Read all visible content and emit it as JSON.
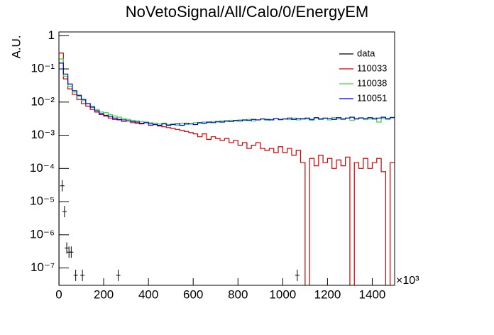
{
  "chart_data": {
    "type": "histogram",
    "title": "NoVetoSignal/All/Calo/0/EnergyEM",
    "y_label": "A.U.",
    "x_multiplier": "×10³",
    "log_y": true,
    "legend_position": "upper right",
    "xlim": [
      0,
      1500
    ],
    "xticks": [
      0,
      200,
      400,
      600,
      800,
      1000,
      1200,
      1400
    ],
    "ylim": [
      3e-08,
      1.3
    ],
    "yticks": [
      {
        "value": 1e-07,
        "label": "10⁻⁷"
      },
      {
        "value": 1e-06,
        "label": "10⁻⁶"
      },
      {
        "value": 1e-05,
        "label": "10⁻⁵"
      },
      {
        "value": 0.0001,
        "label": "10⁻⁴"
      },
      {
        "value": 0.001,
        "label": "10⁻³"
      },
      {
        "value": 0.01,
        "label": "10⁻²"
      },
      {
        "value": 0.1,
        "label": "10⁻¹"
      },
      1
    ],
    "bins": [
      0,
      20,
      40,
      60,
      80,
      100,
      120,
      140,
      160,
      180,
      200,
      220,
      240,
      260,
      280,
      300,
      320,
      340,
      360,
      380,
      400,
      420,
      440,
      460,
      480,
      500,
      520,
      540,
      560,
      580,
      600,
      620,
      640,
      660,
      680,
      700,
      720,
      740,
      760,
      780,
      800,
      820,
      840,
      860,
      880,
      900,
      920,
      940,
      960,
      980,
      1000,
      1020,
      1040,
      1060,
      1080,
      1100,
      1120,
      1140,
      1160,
      1180,
      1200,
      1220,
      1240,
      1260,
      1280,
      1300,
      1320,
      1340,
      1360,
      1380,
      1400,
      1420,
      1440,
      1460,
      1480,
      1500
    ],
    "data_points": {
      "name": "data",
      "color": "#000000",
      "x": [
        15,
        25,
        35,
        45,
        55,
        75,
        105,
        265,
        1065
      ],
      "values": [
        3e-05,
        5e-06,
        4e-07,
        3e-07,
        3e-07,
        6e-08,
        6e-08,
        6e-08,
        6e-08
      ]
    },
    "series": [
      {
        "name": "110033",
        "color": "#cc0000",
        "values": [
          0.3,
          0.05,
          0.025,
          0.017,
          0.012,
          0.009,
          0.0075,
          0.006,
          0.005,
          0.0042,
          0.0038,
          0.0033,
          0.003,
          0.0029,
          0.0026,
          0.0027,
          0.0024,
          0.0023,
          0.0022,
          0.0024,
          0.002,
          0.0021,
          0.0019,
          0.0018,
          0.0017,
          0.0016,
          0.0015,
          0.0014,
          0.0013,
          0.0012,
          0.0011,
          0.0009,
          0.0011,
          0.00075,
          0.0009,
          0.0008,
          0.0007,
          0.0008,
          0.0006,
          0.0007,
          0.0005,
          0.0006,
          0.0004,
          0.0005,
          0.0006,
          0.0004,
          0.00035,
          0.0004,
          0.0003,
          0.00045,
          0.0003,
          0.0004,
          0.00025,
          0.00035,
          0.00015,
          0,
          0.0002,
          0.00012,
          0.00025,
          0.00015,
          0.0002,
          0.0001,
          0.00018,
          0.00012,
          0.00022,
          0,
          0.00015,
          0.0001,
          0.0002,
          0.0001,
          0.00015,
          0.0002,
          8e-05,
          0,
          0.00015
        ]
      },
      {
        "name": "110038",
        "color": "#33dd33",
        "values": [
          0.2,
          0.06,
          0.03,
          0.02,
          0.015,
          0.011,
          0.009,
          0.0075,
          0.006,
          0.005,
          0.0048,
          0.0042,
          0.0038,
          0.0035,
          0.0032,
          0.003,
          0.0028,
          0.0027,
          0.0026,
          0.0025,
          0.0024,
          0.0023,
          0.0022,
          0.0023,
          0.0021,
          0.0022,
          0.002,
          0.0023,
          0.0021,
          0.0022,
          0.0024,
          0.0023,
          0.0025,
          0.0024,
          0.0026,
          0.0025,
          0.0027,
          0.0026,
          0.0028,
          0.0027,
          0.0029,
          0.0028,
          0.003,
          0.0027,
          0.0029,
          0.0031,
          0.0028,
          0.003,
          0.0032,
          0.0029,
          0.0031,
          0.003,
          0.0033,
          0.0029,
          0.0032,
          0.0031,
          0.0028,
          0.0033,
          0.003,
          0.0032,
          0.0029,
          0.0034,
          0.0031,
          0.003,
          0.0033,
          0.0028,
          0.0032,
          0.0034,
          0.003,
          0.0031,
          0.0033,
          0.0025,
          0.0032,
          0.003,
          0.0035
        ]
      },
      {
        "name": "110051",
        "color": "#0000cc",
        "values": [
          0.15,
          0.07,
          0.035,
          0.022,
          0.016,
          0.012,
          0.009,
          0.007,
          0.0055,
          0.0045,
          0.004,
          0.0037,
          0.0033,
          0.003,
          0.0029,
          0.0027,
          0.0026,
          0.0025,
          0.0023,
          0.0024,
          0.0022,
          0.0021,
          0.002,
          0.0022,
          0.002,
          0.0021,
          0.0022,
          0.002,
          0.0023,
          0.0022,
          0.0021,
          0.0024,
          0.0023,
          0.0025,
          0.0024,
          0.0026,
          0.0025,
          0.0027,
          0.0026,
          0.0028,
          0.0027,
          0.0029,
          0.0028,
          0.003,
          0.0029,
          0.0031,
          0.003,
          0.0029,
          0.0032,
          0.003,
          0.0031,
          0.0033,
          0.003,
          0.0032,
          0.0031,
          0.0033,
          0.003,
          0.0034,
          0.0031,
          0.0033,
          0.0032,
          0.003,
          0.0034,
          0.0031,
          0.0033,
          0.0035,
          0.0031,
          0.0033,
          0.0032,
          0.0034,
          0.0031,
          0.0033,
          0.0035,
          0.0032,
          0.0034
        ]
      }
    ]
  }
}
